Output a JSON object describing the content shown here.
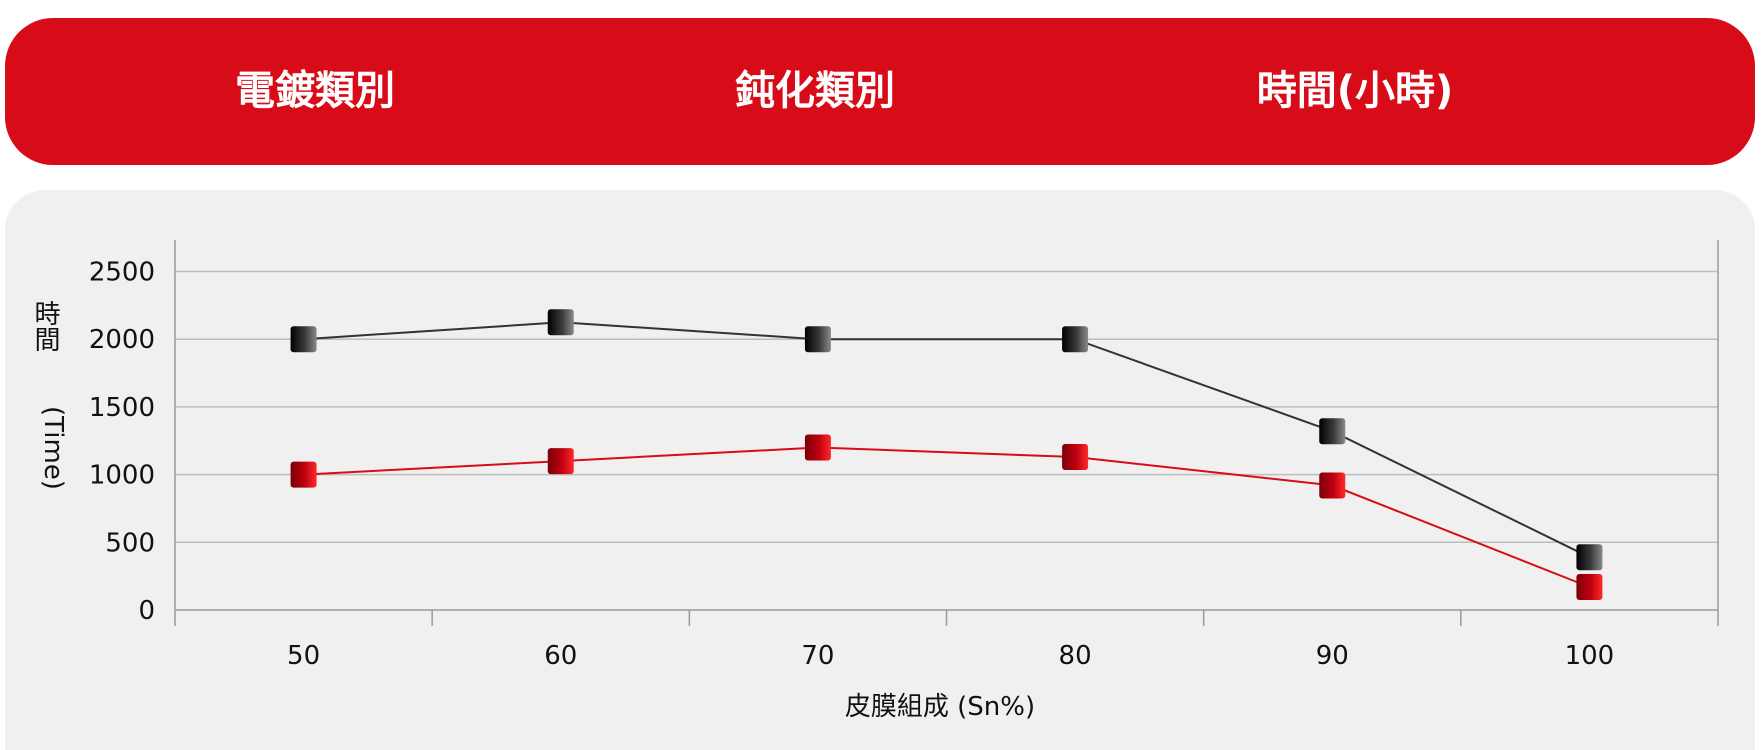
{
  "header": {
    "columns": [
      "電鍍類別",
      "鈍化類別",
      "時間(小時)"
    ],
    "background_color": "#d80c18",
    "text_color": "#ffffff"
  },
  "chart_data": {
    "type": "line",
    "title": "",
    "xlabel": "皮膜組成 (Sn%)",
    "ylabel_cjk": "時間",
    "ylabel_latin": "(Time)",
    "categories": [
      "50",
      "60",
      "70",
      "80",
      "90",
      "100"
    ],
    "yticks": [
      "0",
      "500",
      "1000",
      "1500",
      "2000",
      "2500"
    ],
    "ylim": [
      0,
      2600
    ],
    "grid": true,
    "legend": "none",
    "series": [
      {
        "name": "black",
        "color": "#333333",
        "values": [
          2000,
          2125,
          2000,
          2000,
          1320,
          390
        ]
      },
      {
        "name": "red",
        "color": "#d80c18",
        "values": [
          1000,
          1100,
          1200,
          1130,
          920,
          170
        ]
      }
    ]
  }
}
